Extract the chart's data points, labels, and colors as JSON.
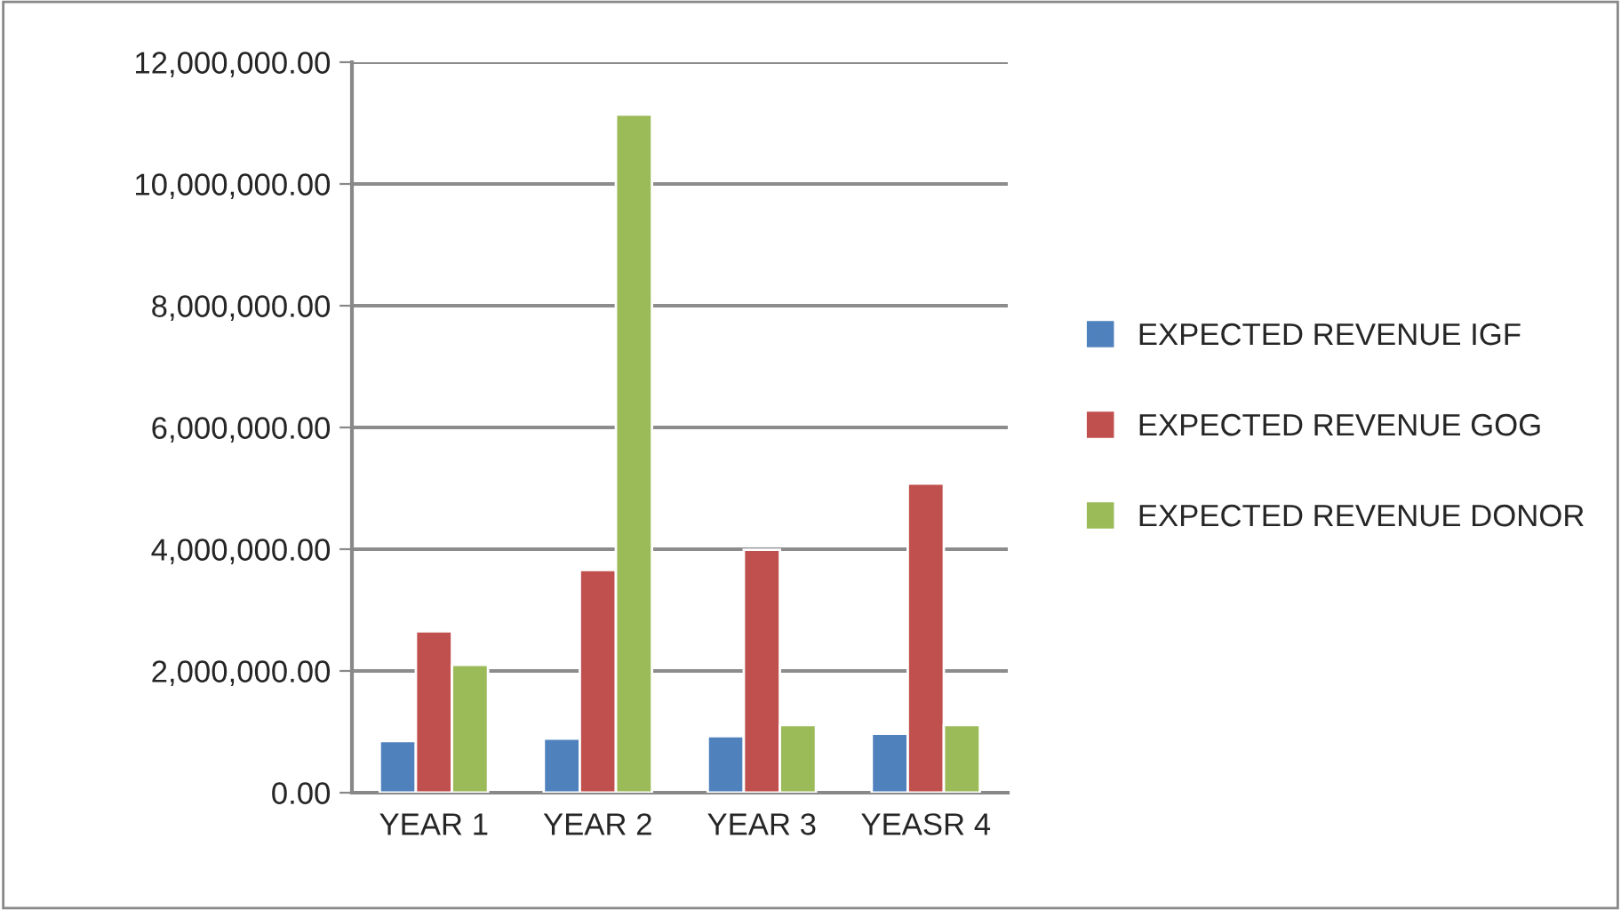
{
  "chart_data": {
    "type": "bar",
    "categories": [
      "YEAR 1",
      "YEAR 2",
      "YEAR 3",
      "YEASR 4"
    ],
    "series": [
      {
        "name": "EXPECTED REVENUE IGF",
        "color": "#4f81bd",
        "values": [
          850000,
          890000,
          930000,
          970000
        ]
      },
      {
        "name": "EXPECTED REVENUE GOG",
        "color": "#c0504d",
        "values": [
          2650000,
          3660000,
          3990000,
          5080000
        ]
      },
      {
        "name": "EXPECTED REVENUE DONOR",
        "color": "#9bbb59",
        "values": [
          2100000,
          11140000,
          1110000,
          1110000
        ]
      }
    ],
    "ylim": [
      0,
      12000000
    ],
    "yticks": [
      {
        "value": 0,
        "label": "0.00"
      },
      {
        "value": 2000000,
        "label": "2,000,000.00"
      },
      {
        "value": 4000000,
        "label": "4,000,000.00"
      },
      {
        "value": 6000000,
        "label": "6,000,000.00"
      },
      {
        "value": 8000000,
        "label": "8,000,000.00"
      },
      {
        "value": 10000000,
        "label": "10,000,000.00"
      },
      {
        "value": 12000000,
        "label": "12,000,000.00"
      }
    ],
    "grid": "y",
    "legend": "right"
  }
}
